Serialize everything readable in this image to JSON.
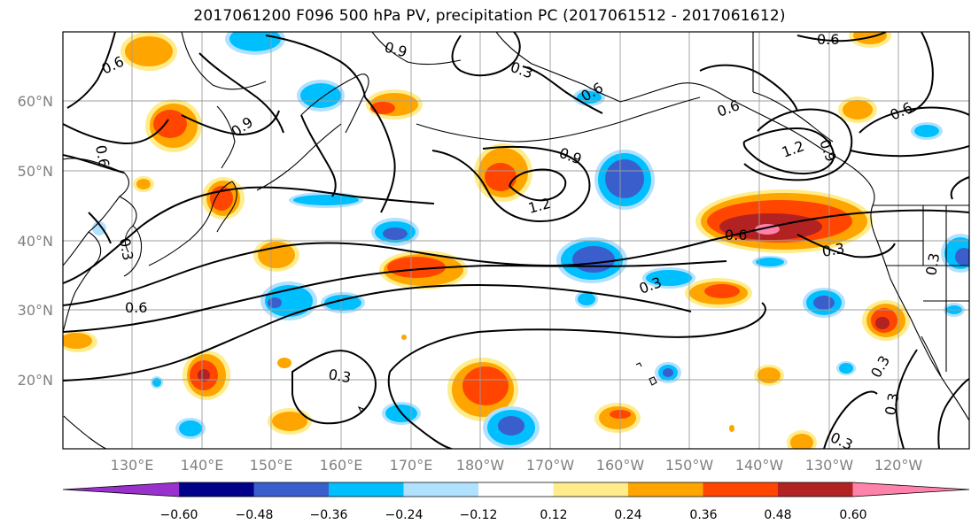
{
  "title": "2017061200 F096 500 hPa PV, precipitation PC (2017061512 - 2017061612)",
  "lat_labels": [
    "60°N",
    "50°N",
    "40°N",
    "30°N",
    "20°N"
  ],
  "lon_labels": [
    "130°E",
    "140°E",
    "150°E",
    "160°E",
    "170°E",
    "180°W",
    "170°W",
    "160°W",
    "150°W",
    "140°W",
    "130°W",
    "120°W"
  ],
  "contour_labels": [
    "0.6",
    "0.9",
    "0.3",
    "0.6",
    "0.9",
    "0.9",
    "0.6",
    "0.6",
    "0.6",
    "1.2",
    "0.3",
    "0.6",
    "0.9",
    "1.2",
    "0.6",
    "0.3",
    "0.3",
    "0.3",
    "0.6",
    "0.3",
    "0.3",
    "0.3",
    "0.3"
  ],
  "colorbar": {
    "ticks": [
      "−0.60",
      "−0.48",
      "−0.36",
      "−0.24",
      "−0.12",
      "0.12",
      "0.24",
      "0.36",
      "0.48",
      "0.60"
    ],
    "colors": [
      "#9932cc",
      "#00008b",
      "#3a5fcd",
      "#00bfff",
      "#b0e2ff",
      "#ffffff",
      "#ffec8b",
      "#ffa500",
      "#ff4500",
      "#b22222",
      "#ff82ab"
    ]
  }
}
